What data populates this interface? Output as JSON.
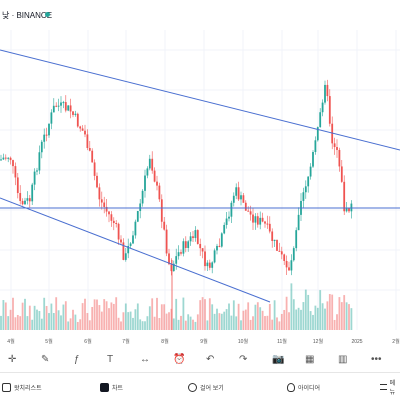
{
  "header": {
    "title": "낮 · BINANCE"
  },
  "chart_data": {
    "type": "candlestick",
    "x_ticks": [
      "4월",
      "5월",
      "6월",
      "7월",
      "8월",
      "9월",
      "10월",
      "11월",
      "12월",
      "2025",
      "2월"
    ],
    "trendlines": [
      {
        "label": "upper-resistance"
      },
      {
        "label": "lower-support"
      },
      {
        "label": "horizontal-support"
      }
    ]
  },
  "toolbar": {
    "items": [
      "crosshair-icon",
      "pencil-icon",
      "formula-icon",
      "text-icon",
      "measure-icon",
      "alarm-icon",
      "undo-icon",
      "redo-icon",
      "camera-icon",
      "calendar-icon",
      "bar-chart-icon",
      "more-icon"
    ]
  },
  "bottom_nav": {
    "watchlist": "왓치리스트",
    "chart": "차트",
    "explore": "걸어 보기",
    "ideas": "아이디어",
    "menu": "메뉴"
  }
}
